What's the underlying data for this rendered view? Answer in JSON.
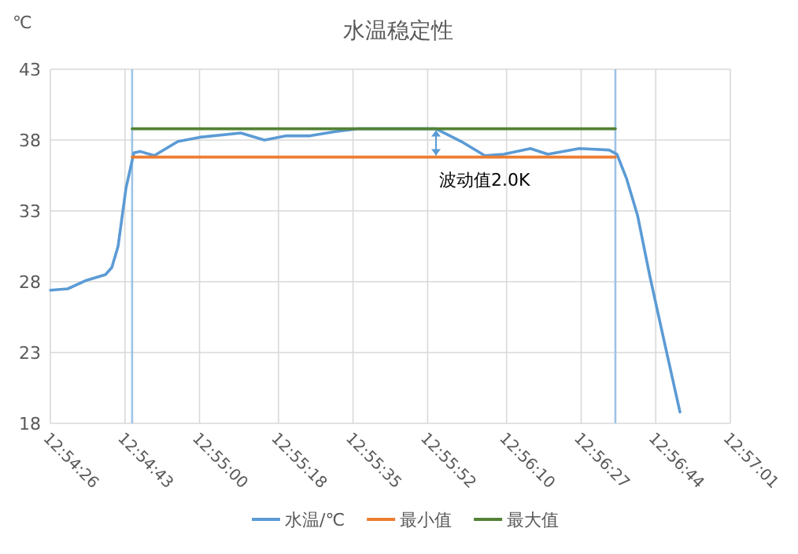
{
  "chart_data": {
    "type": "line",
    "title": "水温稳定性",
    "ylabel": "℃",
    "xlim": [
      12.907222,
      12.950278
    ],
    "xticks": [
      {
        "value": 12.907222,
        "label": "12:54:26"
      },
      {
        "value": 12.911944,
        "label": "12:54:43"
      },
      {
        "value": 12.916667,
        "label": "12:55:00"
      },
      {
        "value": 12.921667,
        "label": "12:55:18"
      },
      {
        "value": 12.926389,
        "label": "12:55:35"
      },
      {
        "value": 12.931111,
        "label": "12:55:52"
      },
      {
        "value": 12.936111,
        "label": "12:56:10"
      },
      {
        "value": 12.940833,
        "label": "12:56:27"
      },
      {
        "value": 12.945556,
        "label": "12:56:44"
      },
      {
        "value": 12.950278,
        "label": "12:57:01"
      }
    ],
    "ylim": [
      18,
      43
    ],
    "yticks": [
      18,
      23,
      28,
      33,
      38,
      43
    ],
    "grid": true,
    "legend": "bottom",
    "marker": "none",
    "series": [
      {
        "name": "水温/℃",
        "color": "#5b9bd5",
        "x": [
          12.90723,
          12.90832,
          12.90951,
          12.91071,
          12.91111,
          12.91151,
          12.91201,
          12.91251,
          12.9129,
          12.9138,
          12.9153,
          12.91669,
          12.91928,
          12.92078,
          12.92217,
          12.92367,
          12.92526,
          12.92666,
          12.93164,
          12.93324,
          12.93473,
          12.93593,
          12.93762,
          12.93872,
          12.94071,
          12.9426,
          12.9431,
          12.9437,
          12.9444,
          12.9452,
          12.94609,
          12.94709
        ],
        "values": [
          27.4,
          27.5,
          28.1,
          28.5,
          29.0,
          30.5,
          34.6,
          37.1,
          37.2,
          36.9,
          37.9,
          38.2,
          38.5,
          38.0,
          38.3,
          38.3,
          38.6,
          38.8,
          38.8,
          37.9,
          36.9,
          37.0,
          37.4,
          37.0,
          37.4,
          37.3,
          37.0,
          35.3,
          32.7,
          28.3,
          23.8,
          18.8
        ]
      },
      {
        "name": "最小值",
        "color": "#ed7d31",
        "x": [
          12.9124,
          12.943
        ],
        "values": [
          36.8,
          36.8
        ]
      },
      {
        "name": "最大值",
        "color": "#548235",
        "x": [
          12.9124,
          12.943
        ],
        "values": [
          38.8,
          38.8
        ]
      }
    ],
    "ref_lines": [
      {
        "axis": "x",
        "value": 12.9124,
        "color": "#9dc3e6"
      },
      {
        "axis": "x",
        "value": 12.943,
        "color": "#9dc3e6"
      }
    ],
    "annotations": [
      "波动值2.0K"
    ]
  }
}
